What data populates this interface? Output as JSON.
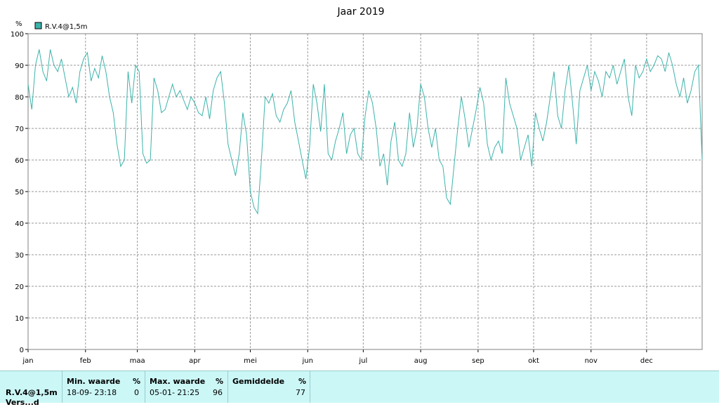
{
  "chart_data": {
    "type": "line",
    "title": "Jaar 2019",
    "ylabel": "%",
    "ylim": [
      0,
      100
    ],
    "yticks": [
      0,
      10,
      20,
      30,
      40,
      50,
      60,
      70,
      80,
      90,
      100
    ],
    "xlim": [
      1,
      365
    ],
    "month_labels": [
      "jan",
      "feb",
      "maa",
      "apr",
      "mei",
      "jun",
      "jul",
      "aug",
      "sep",
      "okt",
      "nov",
      "dec"
    ],
    "month_starts": [
      1,
      32,
      60,
      91,
      121,
      152,
      182,
      213,
      244,
      274,
      305,
      335
    ],
    "grid": true,
    "legend_position": "top-left",
    "series": [
      {
        "name": "R.V.4@1,5m",
        "color": "#3cb3aa",
        "x": [
          1,
          3,
          5,
          7,
          9,
          11,
          13,
          15,
          17,
          19,
          21,
          23,
          25,
          27,
          29,
          31,
          33,
          35,
          37,
          39,
          41,
          43,
          45,
          47,
          49,
          51,
          53,
          55,
          57,
          59,
          61,
          63,
          65,
          67,
          69,
          71,
          73,
          75,
          77,
          79,
          81,
          83,
          85,
          87,
          89,
          91,
          93,
          95,
          97,
          99,
          101,
          103,
          105,
          107,
          109,
          111,
          113,
          115,
          117,
          119,
          121,
          123,
          125,
          127,
          129,
          131,
          133,
          135,
          137,
          139,
          141,
          143,
          145,
          147,
          149,
          151,
          153,
          155,
          157,
          159,
          161,
          163,
          165,
          167,
          169,
          171,
          173,
          175,
          177,
          179,
          181,
          183,
          185,
          187,
          189,
          191,
          193,
          195,
          197,
          199,
          201,
          203,
          205,
          207,
          209,
          211,
          213,
          215,
          217,
          219,
          221,
          223,
          225,
          227,
          229,
          231,
          233,
          235,
          237,
          239,
          241,
          243,
          245,
          247,
          249,
          251,
          253,
          255,
          257,
          259,
          261,
          263,
          265,
          267,
          269,
          271,
          273,
          275,
          277,
          279,
          281,
          283,
          285,
          287,
          289,
          291,
          293,
          295,
          297,
          299,
          301,
          303,
          305,
          307,
          309,
          311,
          313,
          315,
          317,
          319,
          321,
          323,
          325,
          327,
          329,
          331,
          333,
          335,
          337,
          339,
          341,
          343,
          345,
          347,
          349,
          351,
          353,
          355,
          357,
          359,
          361,
          363,
          365
        ],
        "y": [
          84,
          76,
          90,
          95,
          88,
          85,
          95,
          90,
          88,
          92,
          86,
          80,
          83,
          78,
          88,
          92,
          94,
          85,
          89,
          86,
          93,
          88,
          80,
          75,
          65,
          58,
          60,
          88,
          78,
          90,
          88,
          62,
          59,
          60,
          86,
          82,
          75,
          76,
          80,
          84,
          80,
          82,
          79,
          76,
          80,
          78,
          75,
          74,
          80,
          73,
          82,
          86,
          88,
          78,
          65,
          60,
          55,
          62,
          75,
          68,
          50,
          45,
          43,
          60,
          80,
          78,
          81,
          74,
          72,
          76,
          78,
          82,
          72,
          66,
          60,
          54,
          64,
          84,
          78,
          69,
          84,
          62,
          60,
          66,
          70,
          75,
          62,
          68,
          70,
          62,
          60,
          74,
          82,
          78,
          70,
          58,
          62,
          52,
          66,
          72,
          60,
          58,
          62,
          75,
          64,
          70,
          84,
          80,
          70,
          64,
          70,
          60,
          58,
          48,
          46,
          58,
          70,
          80,
          73,
          64,
          70,
          76,
          83,
          78,
          65,
          60,
          64,
          66,
          62,
          86,
          78,
          74,
          70,
          60,
          64,
          68,
          58,
          75,
          70,
          66,
          72,
          80,
          88,
          74,
          70,
          82,
          90,
          78,
          65,
          82,
          86,
          90,
          82,
          88,
          85,
          80,
          88,
          86,
          90,
          84,
          88,
          92,
          80,
          74,
          90,
          86,
          88,
          92,
          88,
          90,
          93,
          92,
          88,
          94,
          90,
          84,
          80,
          86,
          78,
          82,
          88,
          90,
          60
        ]
      }
    ]
  },
  "stats_panel": {
    "sensor_label": "R.V.4@1,5m",
    "sensor_label_2": "Vers...d",
    "min": {
      "header": "Min. waarde",
      "unit": "%",
      "datetime": "18-09- 23:18",
      "value": "0"
    },
    "max": {
      "header": "Max. waarde",
      "unit": "%",
      "datetime": "05-01- 21:25",
      "value": "96"
    },
    "avg": {
      "header": "Gemiddelde",
      "unit": "%",
      "value": "77"
    }
  }
}
